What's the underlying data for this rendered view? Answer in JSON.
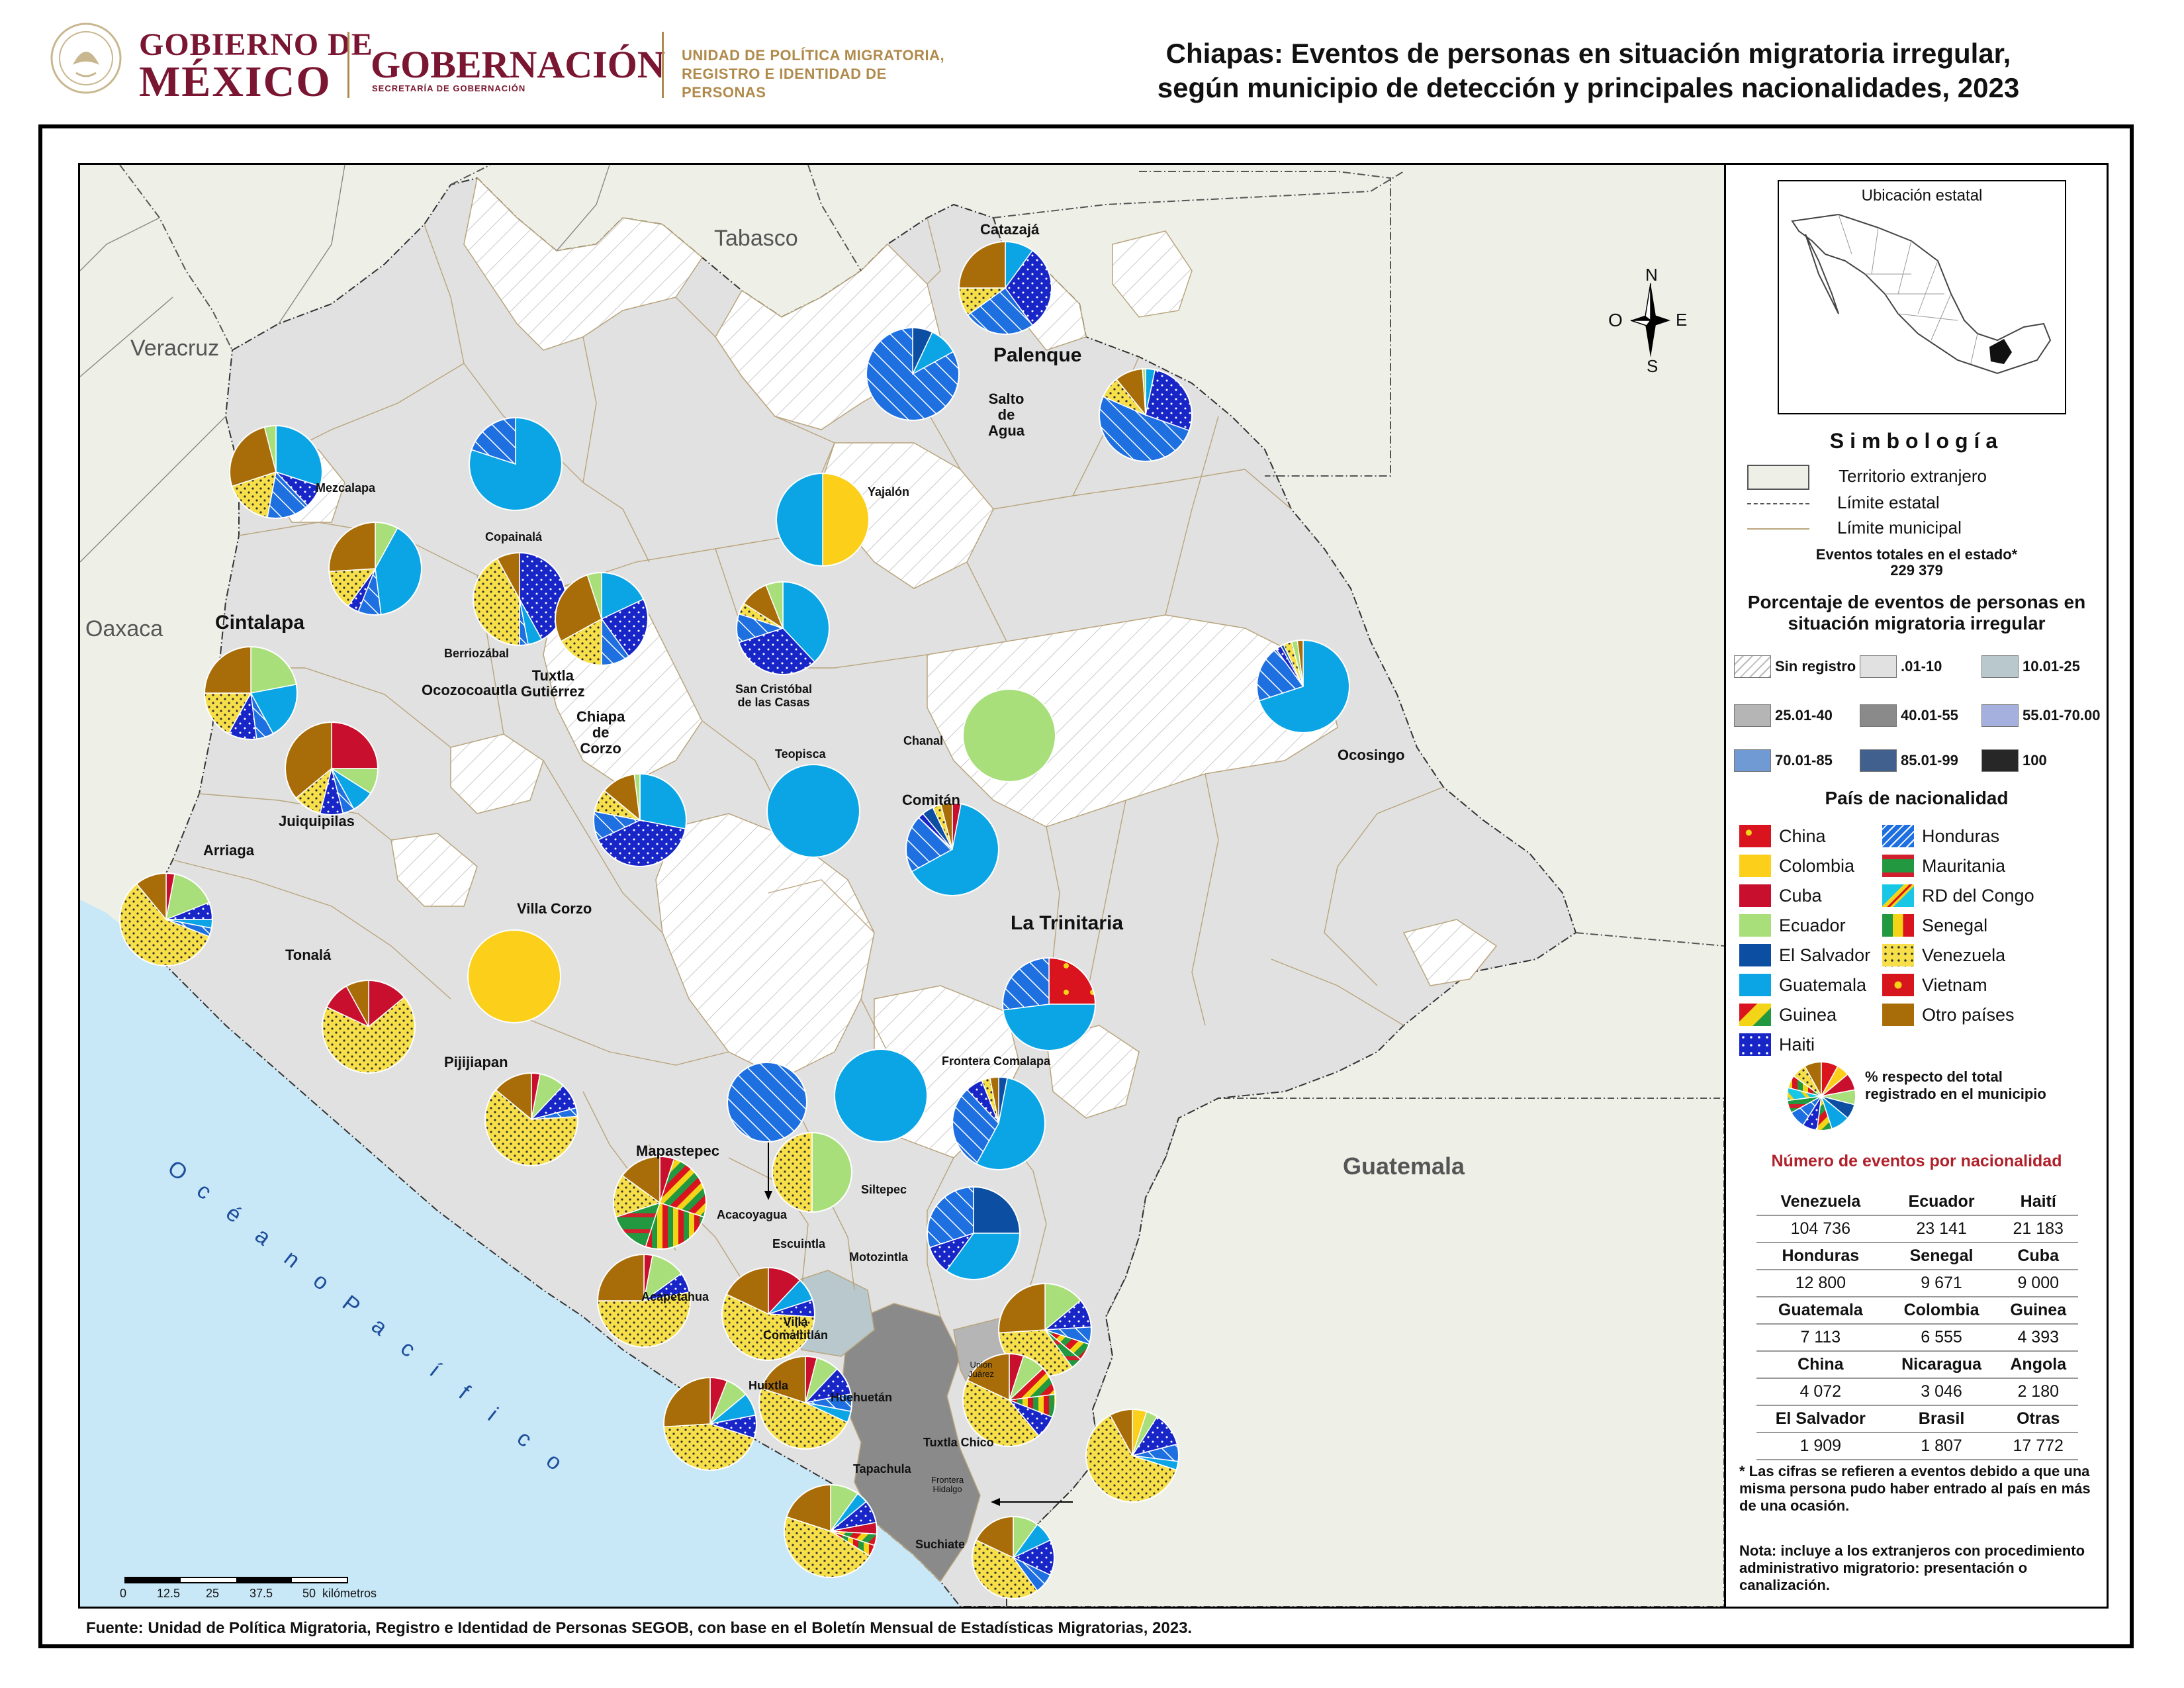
{
  "header": {
    "gob_line1": "GOBIERNO DE",
    "gob_line2": "MÉXICO",
    "gobernacion": "GOBERNACIÓN",
    "gobernacion_sub": "SECRETARÍA DE GOBERNACIÓN",
    "unidad_line1": "UNIDAD DE POLÍTICA MIGRATORIA,",
    "unidad_line2": "REGISTRO E IDENTIDAD DE PERSONAS",
    "title_line1": "Chiapas: Eventos de personas en situación migratoria irregular,",
    "title_line2": "según municipio de detección y principales nacionalidades, 2023"
  },
  "colors": {
    "China": "#d9141f",
    "Colombia": "#fccf1a",
    "Cuba": "#c8102e",
    "Ecuador": "#a8df7a",
    "El Salvador": "#0b4ea2",
    "Guatemala": "#0ba5e6",
    "Guinea": "#229940",
    "Haiti": "#1826c8",
    "Honduras": "#1e6fe0",
    "Mauritania": "#d0202e",
    "RD del Congo": "#18c7e6",
    "Senegal": "#f3d417",
    "Venezuela": "#f7df4a",
    "Vietnam": "#d6161c",
    "Otro países": "#a86d08",
    "ocean": "#c9e8f7",
    "foreign": "#eef0e8",
    "state_fill": "#e1e1e1",
    "border": "#b9a47c"
  },
  "map": {
    "regions": [
      "Tabasco",
      "Veracruz",
      "Oaxaca",
      "Guatemala"
    ],
    "ocean": "O c é a n o   P a c í f i c o",
    "municipalities": [
      {
        "name": "Catazajá",
        "size": "med"
      },
      {
        "name": "Palenque",
        "size": "big"
      },
      {
        "name": "Salto\nde\nAgua",
        "size": "med"
      },
      {
        "name": "Mezcalapa",
        "size": "sm"
      },
      {
        "name": "Copainalá",
        "size": "sm"
      },
      {
        "name": "Yajalón",
        "size": "sm"
      },
      {
        "name": "Cintalapa",
        "size": "big"
      },
      {
        "name": "Berriozábal",
        "size": "sm"
      },
      {
        "name": "Tuxtla\nGutiérrez",
        "size": "med"
      },
      {
        "name": "Ocozocoautla",
        "size": "med"
      },
      {
        "name": "Chiapa\nde\nCorzo",
        "size": "med"
      },
      {
        "name": "San Cristóbal\nde las Casas",
        "size": "sm"
      },
      {
        "name": "Chanal",
        "size": "sm"
      },
      {
        "name": "Teopisca",
        "size": "sm"
      },
      {
        "name": "Ocosingo",
        "size": "med"
      },
      {
        "name": "Juiquipilas",
        "size": "med"
      },
      {
        "name": "Arriaga",
        "size": "med"
      },
      {
        "name": "Comitán",
        "size": "med"
      },
      {
        "name": "Villa Corzo",
        "size": "med"
      },
      {
        "name": "La Trinitaria",
        "size": "big"
      },
      {
        "name": "Tonalá",
        "size": "med"
      },
      {
        "name": "Pijijiapan",
        "size": "med"
      },
      {
        "name": "Frontera Comalapa",
        "size": "sm"
      },
      {
        "name": "Mapastepec",
        "size": "med"
      },
      {
        "name": "Siltepec",
        "size": "sm"
      },
      {
        "name": "Acacoyagua",
        "size": "sm"
      },
      {
        "name": "Escuintla",
        "size": "sm"
      },
      {
        "name": "Motozintla",
        "size": "sm"
      },
      {
        "name": "Acapetahua",
        "size": "sm"
      },
      {
        "name": "Villa\nComaltitlán",
        "size": "sm"
      },
      {
        "name": "Unión\nJuárez",
        "size": "xs"
      },
      {
        "name": "Huixtla",
        "size": "sm"
      },
      {
        "name": "Huehuetán",
        "size": "sm"
      },
      {
        "name": "Tuxtla Chico",
        "size": "sm"
      },
      {
        "name": "Tapachula",
        "size": "sm"
      },
      {
        "name": "Frontera\nHidalgo",
        "size": "xs"
      },
      {
        "name": "Suchiate",
        "size": "sm"
      }
    ],
    "scale_labels": [
      "0",
      "12.5",
      "25",
      "37.5",
      "50"
    ],
    "scale_unit": "kilómetros",
    "compass": {
      "n": "N",
      "s": "S",
      "e": "E",
      "o": "O"
    }
  },
  "pies": [
    {
      "id": "catazaja",
      "slices": [
        [
          "Guatemala",
          10
        ],
        [
          "Haiti",
          30
        ],
        [
          "Honduras",
          25
        ],
        [
          "Venezuela",
          10
        ],
        [
          "Otro países",
          25
        ]
      ]
    },
    {
      "id": "salto",
      "slices": [
        [
          "El Salvador",
          7
        ],
        [
          "Guatemala",
          10
        ],
        [
          "Honduras",
          83
        ]
      ]
    },
    {
      "id": "palenque",
      "slices": [
        [
          "Guatemala",
          3
        ],
        [
          "Haiti",
          25
        ],
        [
          "Honduras",
          47
        ],
        [
          "Venezuela",
          7
        ],
        [
          "Otro países",
          9
        ],
        [
          "Ecuador",
          1
        ]
      ]
    },
    {
      "id": "mezcalapa",
      "slices": [
        [
          "Guatemala",
          30
        ],
        [
          "Haiti",
          8
        ],
        [
          "Honduras",
          15
        ],
        [
          "Venezuela",
          17
        ],
        [
          "Otro países",
          26
        ],
        [
          "Ecuador",
          4
        ]
      ]
    },
    {
      "id": "copainala_n",
      "slices": [
        [
          "Guatemala",
          80
        ],
        [
          "Honduras",
          20
        ]
      ]
    },
    {
      "id": "yajalon",
      "slices": [
        [
          "Colombia",
          50
        ],
        [
          "Guatemala",
          50
        ]
      ]
    },
    {
      "id": "cintalapa_n",
      "slices": [
        [
          "Ecuador",
          8
        ],
        [
          "Guatemala",
          40
        ],
        [
          "Honduras",
          8
        ],
        [
          "Haiti",
          4
        ],
        [
          "Venezuela",
          14
        ],
        [
          "Otro países",
          26
        ]
      ]
    },
    {
      "id": "copainala",
      "slices": [
        [
          "Haiti",
          42
        ],
        [
          "Guatemala",
          5
        ],
        [
          "Honduras",
          3
        ],
        [
          "Venezuela",
          42
        ],
        [
          "Otro países",
          8
        ]
      ]
    },
    {
      "id": "tuxtla",
      "slices": [
        [
          "Guatemala",
          18
        ],
        [
          "Haiti",
          22
        ],
        [
          "Honduras",
          10
        ],
        [
          "Venezuela",
          17
        ],
        [
          "Otro países",
          28
        ],
        [
          "Ecuador",
          5
        ]
      ]
    },
    {
      "id": "sancristobal",
      "slices": [
        [
          "Guatemala",
          38
        ],
        [
          "Haiti",
          32
        ],
        [
          "Honduras",
          10
        ],
        [
          "Venezuela",
          4
        ],
        [
          "Otro países",
          10
        ],
        [
          "Ecuador",
          6
        ]
      ]
    },
    {
      "id": "chanal",
      "slices": [
        [
          "Ecuador",
          100
        ]
      ]
    },
    {
      "id": "ocosingo",
      "slices": [
        [
          "Guatemala",
          70
        ],
        [
          "Honduras",
          20
        ],
        [
          "Haiti",
          2
        ],
        [
          "El Salvador",
          1
        ],
        [
          "Venezuela",
          3
        ],
        [
          "Ecuador",
          2
        ],
        [
          "Otro países",
          2
        ]
      ]
    },
    {
      "id": "cintalapa",
      "slices": [
        [
          "Ecuador",
          22
        ],
        [
          "Guatemala",
          20
        ],
        [
          "Honduras",
          6
        ],
        [
          "Haiti",
          10
        ],
        [
          "Venezuela",
          17
        ],
        [
          "Otro países",
          25
        ]
      ]
    },
    {
      "id": "juiquipilas",
      "slices": [
        [
          "Cuba",
          25
        ],
        [
          "Ecuador",
          9
        ],
        [
          "Guatemala",
          8
        ],
        [
          "Honduras",
          4
        ],
        [
          "Haiti",
          8
        ],
        [
          "Venezuela",
          10
        ],
        [
          "Otro países",
          36
        ]
      ]
    },
    {
      "id": "chiapa",
      "slices": [
        [
          "Guatemala",
          28
        ],
        [
          "Haiti",
          40
        ],
        [
          "Honduras",
          10
        ],
        [
          "Venezuela",
          8
        ],
        [
          "Otro países",
          12
        ],
        [
          "Ecuador",
          2
        ]
      ]
    },
    {
      "id": "teopisca",
      "slices": [
        [
          "Guatemala",
          100
        ]
      ]
    },
    {
      "id": "comitan",
      "slices": [
        [
          "Cuba",
          3
        ],
        [
          "Guatemala",
          64
        ],
        [
          "Honduras",
          20
        ],
        [
          "Haiti",
          2
        ],
        [
          "El Salvador",
          4
        ],
        [
          "Venezuela",
          3
        ],
        [
          "Otro países",
          4
        ]
      ]
    },
    {
      "id": "arriaga",
      "slices": [
        [
          "Cuba",
          3
        ],
        [
          "Ecuador",
          16
        ],
        [
          "Haiti",
          6
        ],
        [
          "Guatemala",
          3
        ],
        [
          "Honduras",
          3
        ],
        [
          "Venezuela",
          58
        ],
        [
          "Otro países",
          11
        ]
      ]
    },
    {
      "id": "villacorzo",
      "slices": [
        [
          "Colombia",
          100
        ]
      ]
    },
    {
      "id": "trinitaria",
      "slices": [
        [
          "China",
          25
        ],
        [
          "Guatemala",
          48
        ],
        [
          "Honduras",
          27
        ]
      ]
    },
    {
      "id": "tonala",
      "slices": [
        [
          "Cuba",
          14
        ],
        [
          "Venezuela",
          68
        ],
        [
          "Cuba",
          10
        ],
        [
          "Otro países",
          8
        ]
      ]
    },
    {
      "id": "villacorzo_hond",
      "slices": [
        [
          "Honduras",
          100
        ]
      ]
    },
    {
      "id": "siltepec_n",
      "slices": [
        [
          "Guatemala",
          100
        ]
      ]
    },
    {
      "id": "fcomalapa",
      "slices": [
        [
          "El Salvador",
          3
        ],
        [
          "Guatemala",
          55
        ],
        [
          "Honduras",
          30
        ],
        [
          "Haiti",
          6
        ],
        [
          "Venezuela",
          3
        ],
        [
          "Otro países",
          3
        ]
      ]
    },
    {
      "id": "pijijiapan",
      "slices": [
        [
          "Cuba",
          3
        ],
        [
          "Ecuador",
          9
        ],
        [
          "Haiti",
          9
        ],
        [
          "Honduras",
          3
        ],
        [
          "Venezuela",
          62
        ],
        [
          "Otro países",
          14
        ]
      ]
    },
    {
      "id": "siltepec",
      "slices": [
        [
          "Ecuador",
          50
        ],
        [
          "Venezuela",
          50
        ]
      ]
    },
    {
      "id": "mapastepec",
      "slices": [
        [
          "Cuba",
          5
        ],
        [
          "Guinea",
          25
        ],
        [
          "Senegal",
          25
        ],
        [
          "Mauritania",
          15
        ],
        [
          "Venezuela",
          15
        ],
        [
          "Otro países",
          15
        ]
      ]
    },
    {
      "id": "motozintla",
      "slices": [
        [
          "El Salvador",
          25
        ],
        [
          "Guatemala",
          35
        ],
        [
          "Haiti",
          10
        ],
        [
          "Honduras",
          30
        ]
      ]
    },
    {
      "id": "acapetahua",
      "slices": [
        [
          "Cuba",
          3
        ],
        [
          "Ecuador",
          12
        ],
        [
          "Haiti",
          7
        ],
        [
          "Venezuela",
          53
        ],
        [
          "Otro países",
          25
        ]
      ]
    },
    {
      "id": "villacomaltitlan",
      "slices": [
        [
          "Cuba",
          12
        ],
        [
          "Guatemala",
          8
        ],
        [
          "Haiti",
          6
        ],
        [
          "Venezuela",
          56
        ],
        [
          "Otro países",
          18
        ]
      ]
    },
    {
      "id": "union",
      "slices": [
        [
          "Ecuador",
          14
        ],
        [
          "Haiti",
          10
        ],
        [
          "Honduras",
          6
        ],
        [
          "Guinea",
          6
        ],
        [
          "Mauritania",
          4
        ],
        [
          "Venezuela",
          34
        ],
        [
          "Otro países",
          26
        ]
      ]
    },
    {
      "id": "huixtla",
      "slices": [
        [
          "Cuba",
          6
        ],
        [
          "Ecuador",
          8
        ],
        [
          "Guatemala",
          8
        ],
        [
          "Haiti",
          8
        ],
        [
          "Venezuela",
          44
        ],
        [
          "Otro países",
          26
        ]
      ]
    },
    {
      "id": "huehuetan",
      "slices": [
        [
          "Cuba",
          4
        ],
        [
          "Ecuador",
          8
        ],
        [
          "Haiti",
          10
        ],
        [
          "Honduras",
          6
        ],
        [
          "Guatemala",
          4
        ],
        [
          "Venezuela",
          48
        ],
        [
          "Otro países",
          20
        ]
      ]
    },
    {
      "id": "tuxtlachico",
      "slices": [
        [
          "Cuba",
          5
        ],
        [
          "Ecuador",
          8
        ],
        [
          "Guinea",
          10
        ],
        [
          "Senegal",
          8
        ],
        [
          "Haiti",
          8
        ],
        [
          "Venezuela",
          43
        ],
        [
          "Otro países",
          18
        ]
      ]
    },
    {
      "id": "fhidalgo",
      "slices": [
        [
          "Colombia",
          5
        ],
        [
          "Ecuador",
          4
        ],
        [
          "Haiti",
          12
        ],
        [
          "Honduras",
          6
        ],
        [
          "Guatemala",
          3
        ],
        [
          "Venezuela",
          62
        ],
        [
          "Otro países",
          8
        ]
      ]
    },
    {
      "id": "tapachula",
      "slices": [
        [
          "Ecuador",
          10
        ],
        [
          "Guatemala",
          4
        ],
        [
          "Haiti",
          8
        ],
        [
          "Cuba",
          4
        ],
        [
          "Guinea",
          4
        ],
        [
          "Senegal",
          4
        ],
        [
          "Venezuela",
          46
        ],
        [
          "Otro países",
          20
        ]
      ]
    },
    {
      "id": "suchiate",
      "slices": [
        [
          "Ecuador",
          10
        ],
        [
          "Guatemala",
          8
        ],
        [
          "Haiti",
          14
        ],
        [
          "Honduras",
          8
        ],
        [
          "Venezuela",
          42
        ],
        [
          "Otro países",
          18
        ]
      ]
    },
    {
      "id": "legend_pie",
      "slices": [
        [
          "China",
          8
        ],
        [
          "Colombia",
          6
        ],
        [
          "Cuba",
          8
        ],
        [
          "Ecuador",
          7
        ],
        [
          "El Salvador",
          7
        ],
        [
          "Guatemala",
          9
        ],
        [
          "Guinea",
          7
        ],
        [
          "Haiti",
          7
        ],
        [
          "Honduras",
          8
        ],
        [
          "Mauritania",
          6
        ],
        [
          "RD del Congo",
          6
        ],
        [
          "Senegal",
          6
        ],
        [
          "Venezuela",
          7
        ],
        [
          "Otro países",
          8
        ]
      ]
    }
  ],
  "legend": {
    "inset_title": "Ubicación estatal",
    "simbologia": "Simbología",
    "items": [
      "Territorio extranjero",
      "Límite estatal",
      "Límite municipal"
    ],
    "total_label": "Eventos totales en el estado*",
    "total_value": "229 379",
    "pct_title": "Porcentaje de eventos de personas en situación migratoria irregular",
    "pct_classes": [
      "Sin registro",
      ".01-10",
      "10.01-25",
      "25.01-40",
      "40.01-55",
      "55.01-70.00",
      "70.01-85",
      "85.01-99",
      "100"
    ],
    "pct_colors": [
      "#ffffff",
      "#e1e1e1",
      "#b8c8cc",
      "#b5b5b5",
      "#8a8a8a",
      "#a6b0de",
      "#6f9ad4",
      "#42608d",
      "#272727"
    ],
    "nat_title": "País de nacionalidad",
    "nat_left": [
      "China",
      "Colombia",
      "Cuba",
      "Ecuador",
      "El Salvador",
      "Guatemala",
      "Guinea",
      "Haiti"
    ],
    "nat_right": [
      "Honduras",
      "Mauritania",
      "RD del Congo",
      "Senegal",
      "Venezuela",
      "Vietnam",
      "Otro países"
    ],
    "pct_pie_label_1": "% respecto del total",
    "pct_pie_label_2": "registrado en el municipio"
  },
  "counts": {
    "title": "Número de eventos por nacionalidad",
    "rows": [
      [
        [
          "Venezuela",
          "104 736"
        ],
        [
          "Ecuador",
          "23 141"
        ],
        [
          "Haití",
          "21 183"
        ]
      ],
      [
        [
          "Honduras",
          "12 800"
        ],
        [
          "Senegal",
          "9 671"
        ],
        [
          "Cuba",
          "9 000"
        ]
      ],
      [
        [
          "Guatemala",
          "7 113"
        ],
        [
          "Colombia",
          "6 555"
        ],
        [
          "Guinea",
          "4 393"
        ]
      ],
      [
        [
          "China",
          "4 072"
        ],
        [
          "Nicaragua",
          "3 046"
        ],
        [
          "Angola",
          "2 180"
        ]
      ],
      [
        [
          "El Salvador",
          "1 909"
        ],
        [
          "Brasil",
          "1 807"
        ],
        [
          "Otras",
          "17 772"
        ]
      ]
    ]
  },
  "notes": {
    "note1": "* Las cifras se refieren a eventos debido a que una misma persona pudo haber entrado al país en más de una ocasión.",
    "note2": "Nota: incluye a los extranjeros con procedimiento administrativo migratorio: presentación o canalización."
  },
  "source": "Fuente: Unidad de Política Migratoria, Registro e Identidad de Personas SEGOB, con base en el Boletín Mensual de Estadísticas Migratorias, 2023."
}
